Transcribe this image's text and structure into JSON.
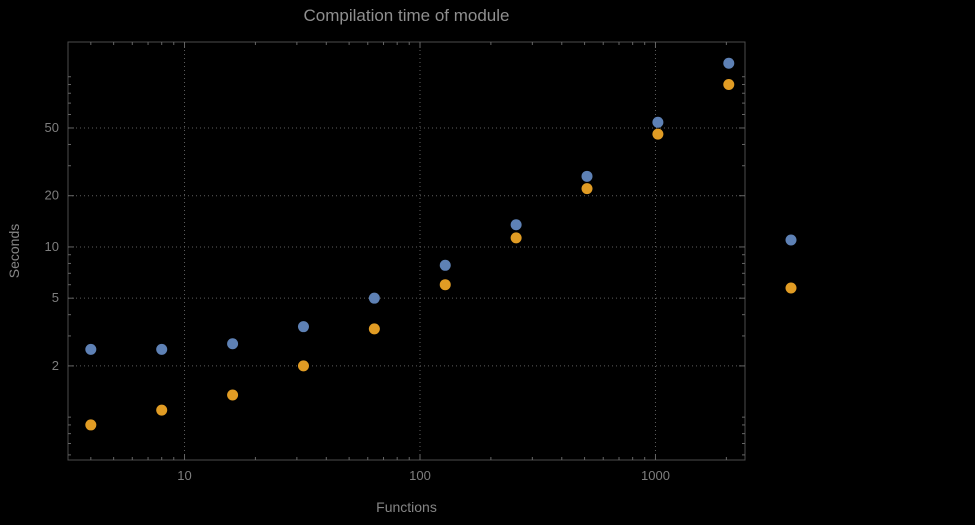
{
  "chart_data": {
    "type": "scatter",
    "title": "Compilation time of module",
    "xlabel": "Functions",
    "ylabel": "Seconds",
    "x_scale": "log",
    "y_scale": "log",
    "grid": "dotted",
    "xlim": [
      3.2,
      2400
    ],
    "ylim": [
      0.56,
      160
    ],
    "x_ticks": [
      10,
      100,
      1000
    ],
    "y_ticks": [
      2,
      5,
      10,
      20,
      50
    ],
    "x": [
      4,
      8,
      16,
      32,
      64,
      128,
      256,
      512,
      1024,
      2048
    ],
    "series": [
      {
        "id": "series-1",
        "color": "#5e81b5",
        "values": [
          2.5,
          2.5,
          2.7,
          3.4,
          5.0,
          7.8,
          13.5,
          26,
          54,
          120
        ]
      },
      {
        "id": "series-2",
        "color": "#e19c24",
        "values": [
          0.9,
          1.1,
          1.35,
          2.0,
          3.3,
          6.0,
          11.3,
          22,
          46,
          90
        ]
      }
    ],
    "legend": {
      "position": "outside-right",
      "entries": [
        {
          "label": "",
          "color": "#5e81b5"
        },
        {
          "label": "",
          "color": "#e19c24"
        }
      ]
    }
  },
  "colors": {
    "background": "#000000",
    "frame": "#4d4d4d",
    "gridline": "#5e5e5e",
    "text": "#858585",
    "series_1": "#5e81b5",
    "series_2": "#e19c24"
  }
}
